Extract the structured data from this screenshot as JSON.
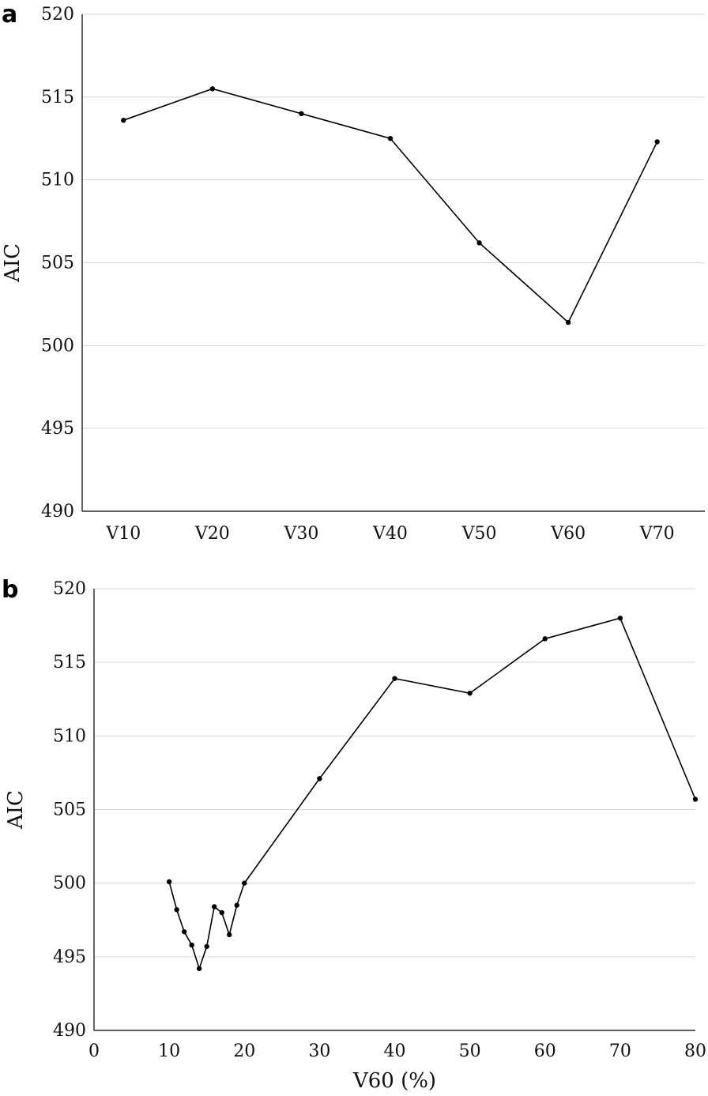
{
  "chart_data": [
    {
      "panel_label": "a",
      "type": "line",
      "categories": [
        "V10",
        "V20",
        "V30",
        "V40",
        "V50",
        "V60",
        "V70"
      ],
      "values": [
        513.6,
        515.5,
        514.0,
        512.5,
        506.2,
        501.4,
        512.3
      ],
      "ylabel": "AIC",
      "xlabel": "",
      "ylim": [
        490,
        520
      ],
      "yticks": [
        490,
        495,
        500,
        505,
        510,
        515,
        520
      ],
      "grid": true,
      "legend": "none"
    },
    {
      "panel_label": "b",
      "type": "line",
      "x": [
        10,
        11,
        12,
        13,
        14,
        15,
        16,
        17,
        18,
        19,
        20,
        30,
        40,
        50,
        60,
        70,
        80
      ],
      "values": [
        500.1,
        498.2,
        496.7,
        495.8,
        494.2,
        495.7,
        498.4,
        498.0,
        496.5,
        498.5,
        500.0,
        507.1,
        513.9,
        512.9,
        516.6,
        518.0,
        505.7
      ],
      "ylabel": "AIC",
      "xlabel": "V60 (%)",
      "xlim": [
        0,
        80
      ],
      "xticks": [
        0,
        10,
        20,
        30,
        40,
        50,
        60,
        70,
        80
      ],
      "ylim": [
        490,
        520
      ],
      "yticks": [
        490,
        495,
        500,
        505,
        510,
        515,
        520
      ],
      "grid": true,
      "legend": "none"
    }
  ]
}
